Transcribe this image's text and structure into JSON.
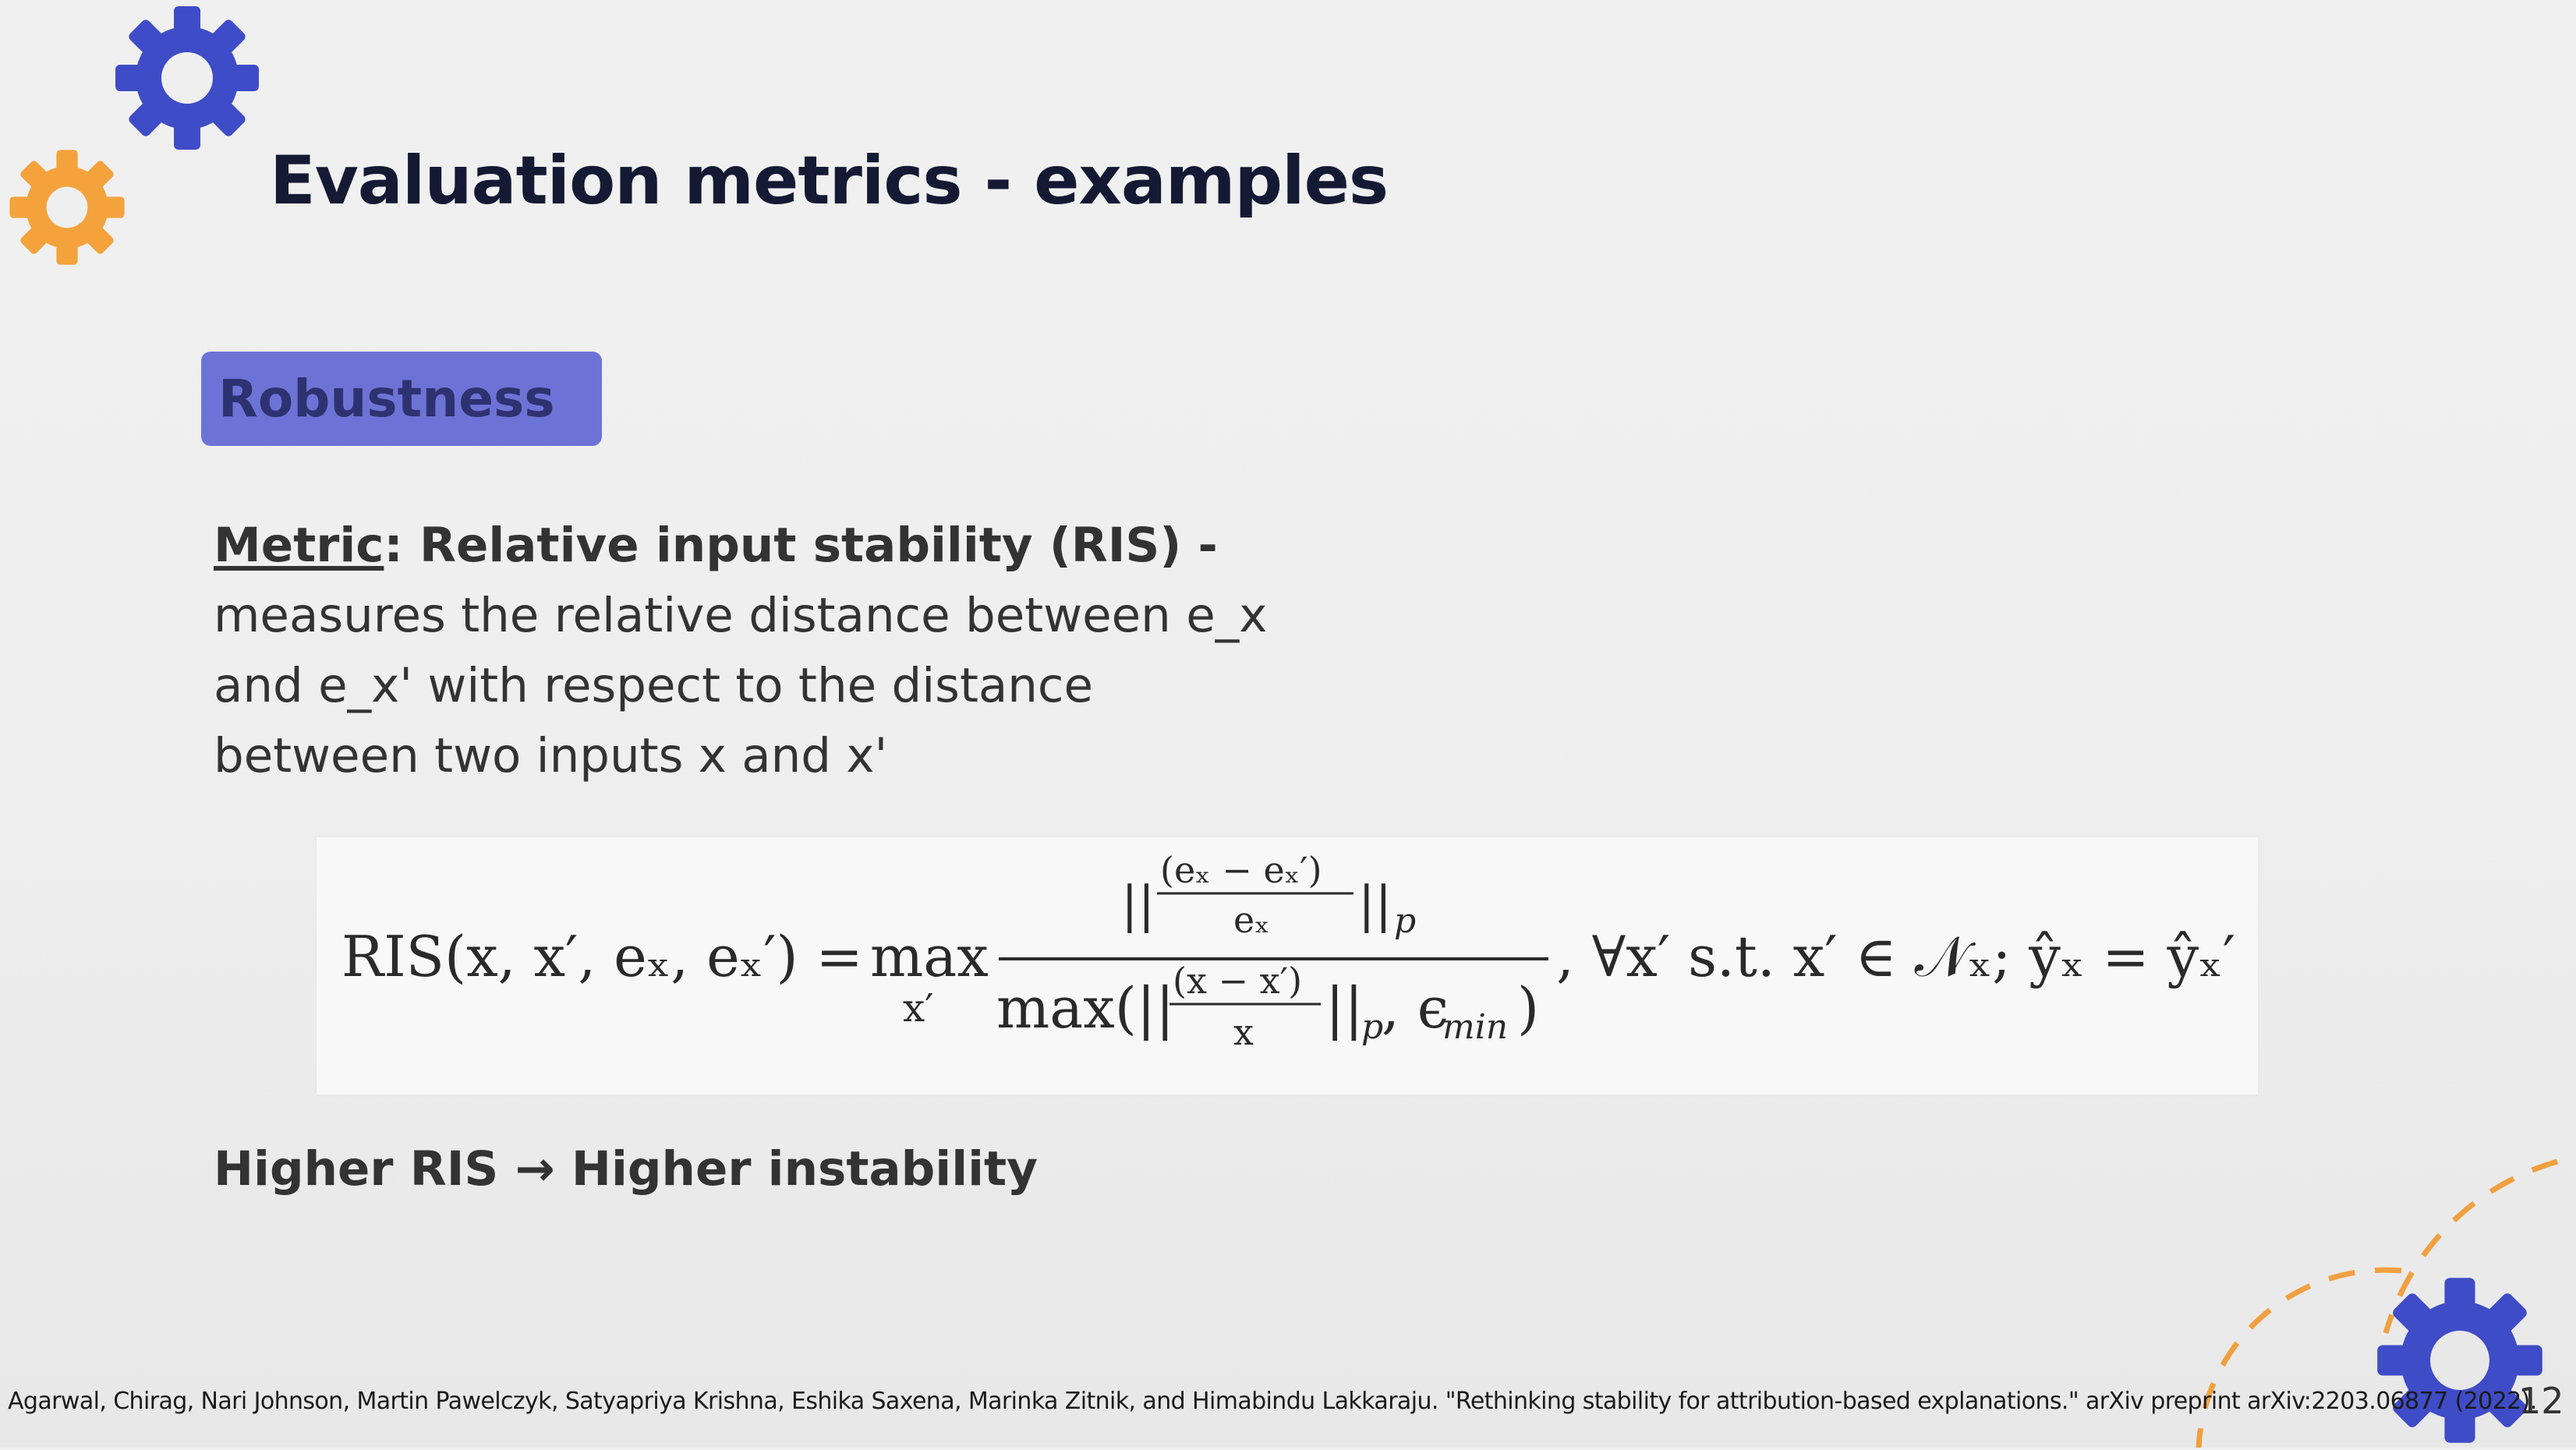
{
  "slide": {
    "title": "Evaluation metrics - examples",
    "tag": "Robustness",
    "metric": {
      "label": "Metric",
      "heading_rest": ": Relative input stability (RIS) -",
      "lines": [
        "measures the relative distance between e_x",
        "and e_x' with respect to the distance",
        "between two inputs x and x'"
      ]
    },
    "formula": {
      "lhs": "RIS(x, x′, eₓ, eₓ′) =",
      "max": "max",
      "max_sub": "x′",
      "num_frac_top": "(eₓ − eₓ′)",
      "num_frac_bottom": "eₓ",
      "num_bars_left": "||",
      "num_bars_right": "||",
      "num_sub": "p",
      "den_prefix": "max(||",
      "den_frac_top": "(x − x′)",
      "den_frac_bottom": "x",
      "den_suffix": "||",
      "den_sub": "p",
      "den_tail": ", ϵ",
      "den_tail_sub": "min",
      "den_close": ")",
      "rhs": ", ∀x′ s.t. x′ ∈ 𝒩ₓ; ŷₓ = ŷₓ′"
    },
    "conclusion": "Higher RIS → Higher instability",
    "citation": "Agarwal, Chirag, Nari Johnson, Martin Pawelczyk, Satyapriya Krishna, Eshika Saxena, Marinka Zitnik, and Himabindu Lakkaraju. \"Rethinking stability for attribution-based explanations.\" arXiv preprint arXiv:2203.06877 (2022).",
    "page_number": "12"
  },
  "colors": {
    "title": "#141a33",
    "tag_bg": "#6d73d6",
    "tag_text": "#2e3270",
    "gear_blue": "#3f4cc7",
    "gear_orange": "#f4a23c",
    "dash_orange": "#f0a040"
  },
  "icons": [
    "gear-icon-blue",
    "gear-icon-orange",
    "gear-icon-bottom-right"
  ]
}
